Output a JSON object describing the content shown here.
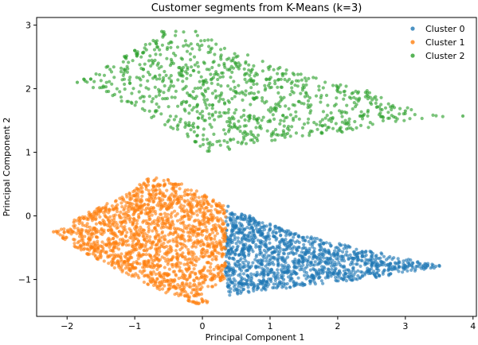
{
  "chart_data": {
    "type": "scatter",
    "title": "Customer segments from K-Means (k=3)",
    "xlabel": "Principal Component 1",
    "ylabel": "Principal Component 2",
    "xlim": [
      -2.45,
      4.05
    ],
    "ylim": [
      -1.58,
      3.12
    ],
    "xticks": [
      -2,
      -1,
      0,
      1,
      2,
      3,
      4
    ],
    "yticks": [
      -1,
      0,
      1,
      2,
      3
    ],
    "grid": false,
    "legend_position": "top-right",
    "series": [
      {
        "name": "Cluster 0",
        "color": "#1f77b4",
        "region": {
          "polygon": [
            [
              0.35,
              0.15
            ],
            [
              0.38,
              0.1
            ],
            [
              1.5,
              -0.3
            ],
            [
              2.5,
              -0.55
            ],
            [
              3.5,
              -0.78
            ],
            [
              3.55,
              -0.8
            ],
            [
              2.5,
              -0.98
            ],
            [
              1.5,
              -1.1
            ],
            [
              0.9,
              -1.18
            ],
            [
              0.4,
              -1.25
            ],
            [
              0.33,
              -1.0
            ]
          ],
          "count": 1300
        },
        "points": [
          {
            "x": 0.38,
            "y": 0.15
          },
          {
            "x": 0.7,
            "y": 0.0
          },
          {
            "x": 1.0,
            "y": -0.2
          },
          {
            "x": 1.5,
            "y": -0.5
          },
          {
            "x": 2.0,
            "y": -0.6
          },
          {
            "x": 2.5,
            "y": -0.75
          },
          {
            "x": 3.0,
            "y": -0.8
          },
          {
            "x": 3.5,
            "y": -0.78
          },
          {
            "x": 0.5,
            "y": -1.15
          },
          {
            "x": 1.2,
            "y": -1.0
          },
          {
            "x": 2.2,
            "y": -0.95
          },
          {
            "x": 0.4,
            "y": -0.6
          }
        ]
      },
      {
        "name": "Cluster 1",
        "color": "#ff7f0e",
        "region": {
          "polygon": [
            [
              -2.2,
              -0.25
            ],
            [
              -1.8,
              0.0
            ],
            [
              -1.2,
              0.3
            ],
            [
              -0.8,
              0.6
            ],
            [
              -0.5,
              0.6
            ],
            [
              0.0,
              0.35
            ],
            [
              0.35,
              0.15
            ],
            [
              0.35,
              -1.0
            ],
            [
              0.0,
              -1.2
            ],
            [
              0.1,
              -1.38
            ],
            [
              -0.2,
              -1.38
            ],
            [
              -1.0,
              -0.98
            ],
            [
              -1.8,
              -0.55
            ]
          ],
          "count": 1700
        },
        "points": [
          {
            "x": -2.2,
            "y": -0.25
          },
          {
            "x": -1.9,
            "y": -0.1
          },
          {
            "x": -1.5,
            "y": 0.1
          },
          {
            "x": -1.0,
            "y": 0.4
          },
          {
            "x": -0.8,
            "y": 0.58
          },
          {
            "x": -0.4,
            "y": 0.5
          },
          {
            "x": 0.0,
            "y": 0.3
          },
          {
            "x": 0.3,
            "y": 0.1
          },
          {
            "x": 0.0,
            "y": -1.35
          },
          {
            "x": -0.5,
            "y": -1.15
          },
          {
            "x": -1.2,
            "y": -0.8
          },
          {
            "x": -0.3,
            "y": -0.5
          }
        ]
      },
      {
        "name": "Cluster 2",
        "color": "#2ca02c",
        "region": {
          "polygon": [
            [
              -1.85,
              2.1
            ],
            [
              -1.5,
              2.3
            ],
            [
              -1.0,
              2.6
            ],
            [
              -0.6,
              2.9
            ],
            [
              -0.2,
              2.92
            ],
            [
              0.5,
              2.6
            ],
            [
              1.5,
              2.25
            ],
            [
              2.5,
              1.95
            ],
            [
              3.3,
              1.6
            ],
            [
              3.85,
              1.57
            ],
            [
              3.0,
              1.5
            ],
            [
              2.0,
              1.3
            ],
            [
              1.0,
              1.18
            ],
            [
              0.3,
              1.05
            ],
            [
              0.1,
              1.0
            ],
            [
              -0.5,
              1.4
            ],
            [
              -1.2,
              1.8
            ]
          ],
          "count": 900
        },
        "points": [
          {
            "x": -1.85,
            "y": 2.1
          },
          {
            "x": -1.4,
            "y": 2.35
          },
          {
            "x": -1.0,
            "y": 2.6
          },
          {
            "x": -0.6,
            "y": 2.9
          },
          {
            "x": -0.1,
            "y": 2.9
          },
          {
            "x": 0.5,
            "y": 2.5
          },
          {
            "x": 1.0,
            "y": 2.35
          },
          {
            "x": 2.0,
            "y": 2.0
          },
          {
            "x": 3.0,
            "y": 1.65
          },
          {
            "x": 3.85,
            "y": 1.57
          },
          {
            "x": 0.1,
            "y": 1.02
          },
          {
            "x": 0.4,
            "y": 1.05
          }
        ]
      }
    ]
  }
}
